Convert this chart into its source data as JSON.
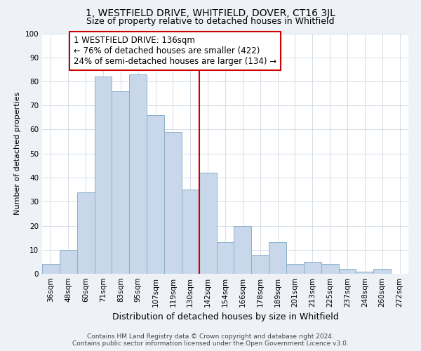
{
  "title": "1, WESTFIELD DRIVE, WHITFIELD, DOVER, CT16 3JL",
  "subtitle": "Size of property relative to detached houses in Whitfield",
  "xlabel": "Distribution of detached houses by size in Whitfield",
  "ylabel": "Number of detached properties",
  "bar_labels": [
    "36sqm",
    "48sqm",
    "60sqm",
    "71sqm",
    "83sqm",
    "95sqm",
    "107sqm",
    "119sqm",
    "130sqm",
    "142sqm",
    "154sqm",
    "166sqm",
    "178sqm",
    "189sqm",
    "201sqm",
    "213sqm",
    "225sqm",
    "237sqm",
    "248sqm",
    "260sqm",
    "272sqm"
  ],
  "bar_values": [
    4,
    10,
    34,
    82,
    76,
    83,
    66,
    59,
    35,
    42,
    13,
    20,
    8,
    13,
    4,
    5,
    4,
    2,
    1,
    2,
    0
  ],
  "bar_color": "#c8d8ea",
  "bar_edge_color": "#8ab0cc",
  "vline_x_index": 8.5,
  "vline_color": "#cc0000",
  "annotation_line1": "1 WESTFIELD DRIVE: 136sqm",
  "annotation_line2": "← 76% of detached houses are smaller (422)",
  "annotation_line3": "24% of semi-detached houses are larger (134) →",
  "annotation_box_color": "#ffffff",
  "annotation_box_edge": "#cc0000",
  "ylim": [
    0,
    100
  ],
  "yticks": [
    0,
    10,
    20,
    30,
    40,
    50,
    60,
    70,
    80,
    90,
    100
  ],
  "footer_line1": "Contains HM Land Registry data © Crown copyright and database right 2024.",
  "footer_line2": "Contains public sector information licensed under the Open Government Licence v3.0.",
  "bg_color": "#eef2f7",
  "plot_bg_color": "#ffffff",
  "title_fontsize": 10,
  "subtitle_fontsize": 9,
  "xlabel_fontsize": 9,
  "ylabel_fontsize": 8,
  "tick_fontsize": 7.5,
  "annotation_fontsize": 8.5,
  "footer_fontsize": 6.5
}
